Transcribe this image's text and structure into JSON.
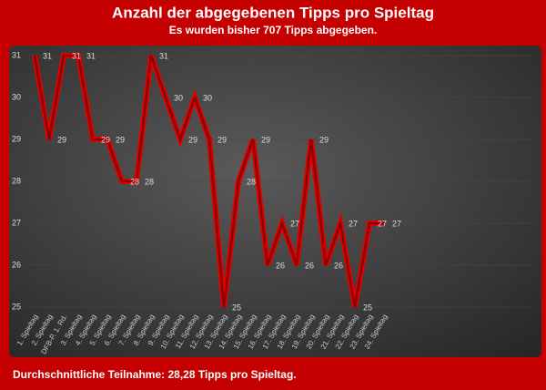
{
  "chart_data": {
    "type": "line",
    "title": "Anzahl der abgegebenen Tipps pro Spieltag",
    "subtitle": "Es wurden bisher 707 Tipps abgegeben.",
    "footer": "Durchschnittliche Teilnahme: 28,28 Tipps pro Spieltag.",
    "categories": [
      "1. Spieltag",
      "2. Spieltag",
      "DFB-P. 1. Rd.",
      "3. Spieltag",
      "4. Spieltag",
      "5. Spieltag",
      "6. Spieltag",
      "7. Spieltag",
      "8. Spieltag",
      "9. Spieltag",
      "10. Spieltag",
      "11. Spieltag",
      "12. Spieltag",
      "13. Spieltag",
      "14. Spieltag",
      "15. Spieltag",
      "16. Spieltag",
      "17. Spieltag",
      "18. Spieltag",
      "19. Spieltag",
      "20. Spieltag",
      "21. Spieltag",
      "22. Spieltag",
      "23. Spieltag",
      "24. Spieltag"
    ],
    "values": [
      31,
      29,
      31,
      31,
      29,
      29,
      28,
      28,
      31,
      30,
      29,
      30,
      29,
      25,
      28,
      29,
      26,
      27,
      26,
      29,
      26,
      27,
      25,
      27,
      27
    ],
    "color": "#8b0000",
    "ylim": [
      25,
      31
    ],
    "yticks": [
      25,
      26,
      27,
      28,
      29,
      30,
      31
    ],
    "grid": true
  }
}
